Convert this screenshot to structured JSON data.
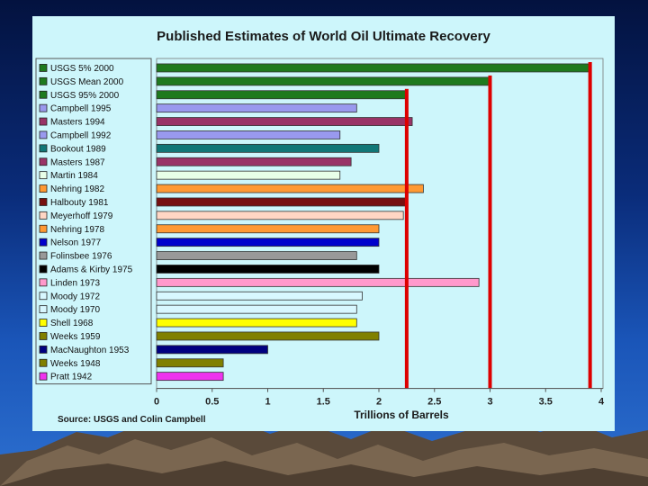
{
  "chart_data": {
    "type": "bar",
    "orientation": "horizontal",
    "title": "Published Estimates of World Oil Ultimate Recovery",
    "xlabel": "Trillions of Barrels",
    "source": "Source:  USGS and Colin Campbell",
    "xlim": [
      0,
      4
    ],
    "xticks": [
      "0",
      "0.5",
      "1",
      "1.5",
      "2",
      "2.5",
      "3",
      "3.5",
      "4"
    ],
    "categories": [
      "USGS 5% 2000",
      "USGS Mean 2000",
      "USGS 95% 2000",
      "Campbell 1995",
      "Masters 1994",
      "Campbell 1992",
      "Bookout 1989",
      "Masters 1987",
      "Martin 1984",
      "Nehring 1982",
      "Halbouty 1981",
      "Meyerhoff 1979",
      "Nehring 1978",
      "Nelson 1977",
      "Folinsbee 1976",
      "Adams & Kirby 1975",
      "Linden 1973",
      "Moody 1972",
      "Moody 1970",
      "Shell 1968",
      "Weeks 1959",
      "MacNaughton 1953",
      "Weeks 1948",
      "Pratt 1942"
    ],
    "values": [
      3.9,
      3.0,
      2.25,
      1.8,
      2.3,
      1.65,
      2.0,
      1.75,
      1.65,
      2.4,
      2.25,
      2.22,
      2.0,
      2.0,
      1.8,
      2.0,
      2.9,
      1.85,
      1.8,
      1.8,
      2.0,
      1.0,
      0.6,
      0.6
    ],
    "colors": [
      "#1e7a1e",
      "#1e7a1e",
      "#1e7a1e",
      "#9999ee",
      "#993366",
      "#9999ee",
      "#117777",
      "#993366",
      "#e8ffe8",
      "#ff9933",
      "#771111",
      "#ffd6c4",
      "#ff9933",
      "#0000cc",
      "#999999",
      "#000000",
      "#ff99cc",
      "#d8f8ff",
      "#d8f8ff",
      "#ffff00",
      "#808000",
      "#000080",
      "#808000",
      "#ee33ee"
    ],
    "reference_lines": [
      {
        "value": 2.25,
        "color": "#dd0000",
        "from_category": "USGS 95% 2000"
      },
      {
        "value": 3.0,
        "color": "#dd0000",
        "from_category": "USGS Mean 2000"
      },
      {
        "value": 3.9,
        "color": "#dd0000",
        "from_category": "USGS 5% 2000"
      }
    ]
  }
}
